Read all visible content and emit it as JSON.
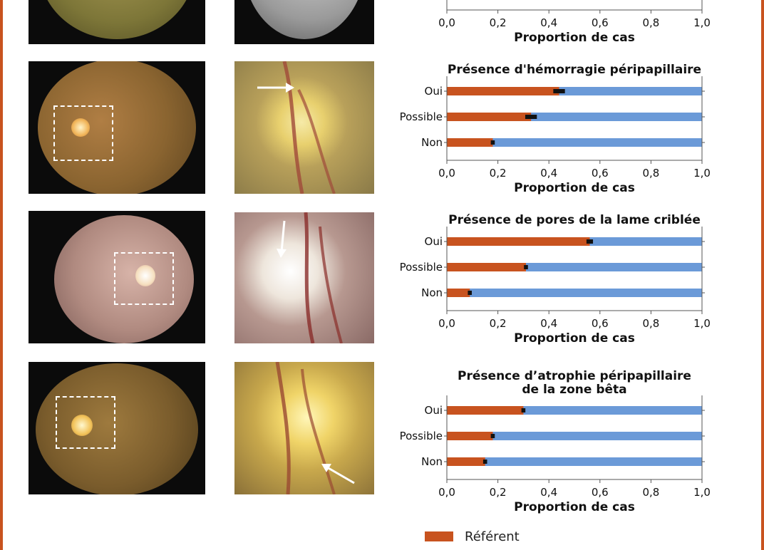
{
  "colors": {
    "referent": "#c8531f",
    "other": "#6b9ad8",
    "frame": "#c8531f",
    "error_bar": "#111111"
  },
  "x_axis": {
    "label": "Proportion de cas",
    "ticks": [
      "0,0",
      "0,2",
      "0,4",
      "0,6",
      "0,8",
      "1,0"
    ]
  },
  "legend": {
    "items": [
      {
        "label": "Référent",
        "color": "#c8531f"
      }
    ]
  },
  "chart_data": [
    {
      "type": "bar",
      "orientation": "horizontal",
      "stacked": true,
      "title": "",
      "categories": [],
      "series": [],
      "xlabel": "Proportion de cas",
      "xlim": [
        0,
        1
      ]
    },
    {
      "type": "bar",
      "orientation": "horizontal",
      "stacked": true,
      "title": "Présence d'hémorragie péripapillaire",
      "categories": [
        "Oui",
        "Possible",
        "Non"
      ],
      "series": [
        {
          "name": "Référent",
          "values": [
            0.44,
            0.33,
            0.18
          ],
          "error": [
            0.02,
            0.02,
            0.005
          ]
        }
      ],
      "xlabel": "Proportion de cas",
      "xlim": [
        0,
        1
      ]
    },
    {
      "type": "bar",
      "orientation": "horizontal",
      "stacked": true,
      "title": "Présence de pores de la lame criblée",
      "categories": [
        "Oui",
        "Possible",
        "Non"
      ],
      "series": [
        {
          "name": "Référent",
          "values": [
            0.56,
            0.31,
            0.09
          ],
          "error": [
            0.01,
            0.005,
            0.005
          ]
        }
      ],
      "xlabel": "Proportion de cas",
      "xlim": [
        0,
        1
      ]
    },
    {
      "type": "bar",
      "orientation": "horizontal",
      "stacked": true,
      "title": "Présence d’atrophie péripapillaire de la zone bêta",
      "title_lines": [
        "Présence d’atrophie péripapillaire",
        "de la zone bêta"
      ],
      "categories": [
        "Oui",
        "Possible",
        "Non"
      ],
      "series": [
        {
          "name": "Référent",
          "values": [
            0.3,
            0.18,
            0.15
          ],
          "error": [
            0.005,
            0.005,
            0.005
          ]
        }
      ],
      "xlabel": "Proportion de cas",
      "xlim": [
        0,
        1
      ]
    }
  ]
}
